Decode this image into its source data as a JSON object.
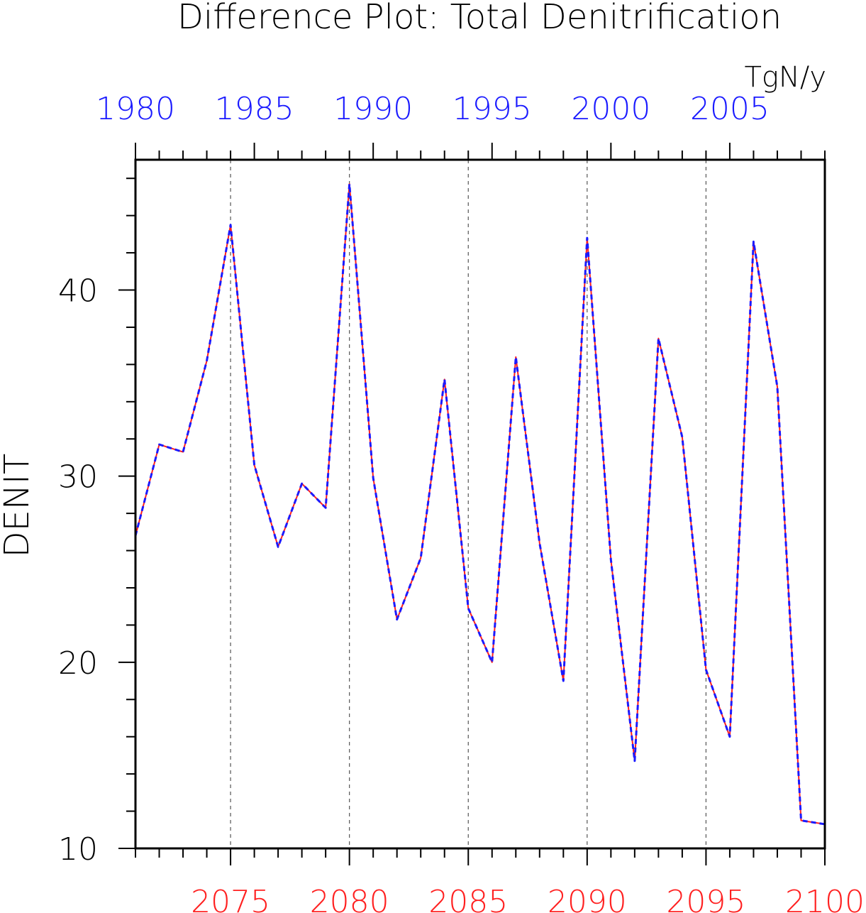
{
  "chart_data": {
    "type": "line",
    "title": "Difference Plot: Total Denitrification",
    "units": "TgN/y",
    "ylabel": "DENIT",
    "ylim": [
      10,
      47
    ],
    "yticks": [
      10,
      20,
      30,
      40
    ],
    "x_bottom": {
      "range": [
        2071,
        2100
      ],
      "tick_labels": [
        "2075",
        "2080",
        "2085",
        "2090",
        "2095",
        "2100"
      ],
      "color": "#ff2020"
    },
    "x_top": {
      "range": [
        1980,
        2009
      ],
      "tick_labels": [
        "1980",
        "1985",
        "1990",
        "1995",
        "2000",
        "2005"
      ],
      "color": "#1a1aff"
    },
    "grid": "dashed vertical lines every 5 years",
    "x": [
      2071,
      2072,
      2073,
      2074,
      2075,
      2076,
      2077,
      2078,
      2079,
      2080,
      2081,
      2082,
      2083,
      2084,
      2085,
      2086,
      2087,
      2088,
      2089,
      2090,
      2091,
      2092,
      2093,
      2094,
      2095,
      2096,
      2097,
      2098,
      2099,
      2100
    ],
    "series": [
      {
        "color": "#ff2020",
        "style": "solid",
        "values": [
          26.8,
          31.7,
          31.3,
          36.2,
          43.5,
          30.6,
          26.2,
          29.6,
          28.3,
          45.7,
          29.9,
          22.3,
          25.6,
          35.2,
          22.9,
          20.0,
          36.4,
          26.4,
          19.0,
          42.8,
          25.5,
          14.7,
          37.4,
          32.1,
          19.6,
          16.0,
          42.6,
          34.8,
          11.5,
          11.3
        ]
      },
      {
        "color": "#1a1aff",
        "style": "dashed",
        "values": [
          26.8,
          31.7,
          31.3,
          36.2,
          43.5,
          30.6,
          26.2,
          29.6,
          28.3,
          45.7,
          29.9,
          22.3,
          25.6,
          35.2,
          22.9,
          20.0,
          36.4,
          26.4,
          19.0,
          42.8,
          25.5,
          14.7,
          37.4,
          32.1,
          19.6,
          16.0,
          42.6,
          34.8,
          11.5,
          11.3
        ]
      }
    ]
  }
}
